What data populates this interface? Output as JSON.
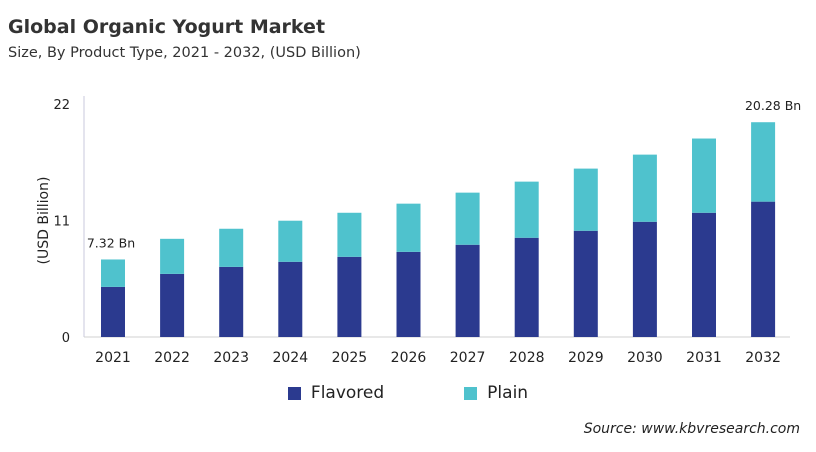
{
  "chart_data": {
    "type": "bar",
    "stacked": true,
    "title": "Global Organic Yogurt Market",
    "subtitle": "Size, By Product Type, 2021 - 2032, (USD Billion)",
    "ylabel": "(USD Billion)",
    "xlabel": "",
    "ylim": [
      0,
      22
    ],
    "yticks": [
      "0",
      "11",
      "22"
    ],
    "grid": false,
    "legend": "bottom",
    "categories": [
      "2021",
      "2022",
      "2023",
      "2024",
      "2025",
      "2026",
      "2027",
      "2028",
      "2029",
      "2030",
      "2031",
      "2032"
    ],
    "series": [
      {
        "name": "Flavored",
        "color": "#2b3a8f",
        "values": [
          4.73,
          5.96,
          6.62,
          7.1,
          7.57,
          8.04,
          8.71,
          9.37,
          10.03,
          10.88,
          11.73,
          12.78
        ]
      },
      {
        "name": "Plain",
        "color": "#4fc2cd",
        "values": [
          2.59,
          3.31,
          3.6,
          3.88,
          4.16,
          4.55,
          4.92,
          5.3,
          5.87,
          6.34,
          7.01,
          7.5
        ]
      }
    ],
    "data_labels": [
      {
        "category": "2021",
        "text": "7.32 Bn"
      },
      {
        "category": "2032",
        "text": "20.28 Bn"
      }
    ]
  },
  "source": "Source: www.kbvresearch.com"
}
